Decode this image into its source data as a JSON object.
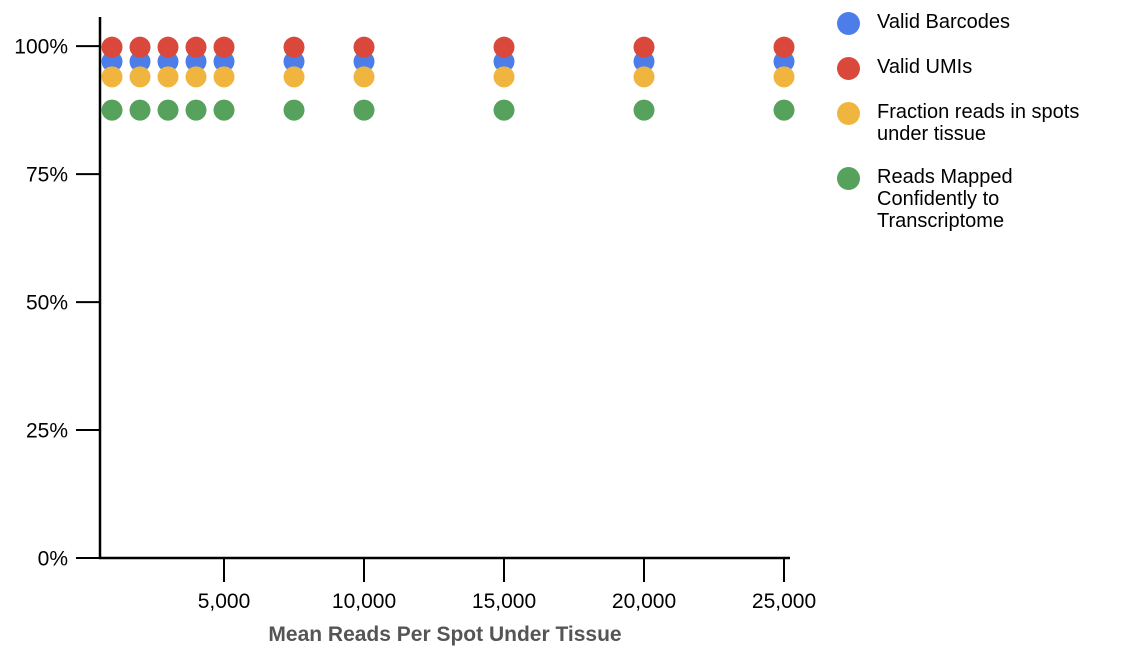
{
  "chart_data": {
    "type": "scatter",
    "title": "",
    "xlabel": "Mean Reads Per Spot Under Tissue",
    "ylabel": "",
    "x": [
      1000,
      2000,
      3000,
      4000,
      5000,
      7500,
      10000,
      15000,
      20000,
      25000
    ],
    "series": [
      {
        "name": "Valid Barcodes",
        "color": "#4C7DE8",
        "values": [
          97,
          97,
          97,
          97,
          97,
          97,
          97,
          97,
          97,
          97
        ]
      },
      {
        "name": "Valid UMIs",
        "color": "#D9483B",
        "values": [
          99.8,
          99.8,
          99.8,
          99.8,
          99.8,
          99.8,
          99.8,
          99.8,
          99.8,
          99.8
        ]
      },
      {
        "name": "Fraction reads in spots under tissue",
        "color": "#F0B53E",
        "values": [
          94,
          94,
          94,
          94,
          94,
          94,
          94,
          94,
          94,
          94
        ]
      },
      {
        "name": "Reads Mapped Confidently to Transcriptome",
        "color": "#56A15C",
        "values": [
          87.5,
          87.5,
          87.5,
          87.5,
          87.5,
          87.5,
          87.5,
          87.5,
          87.5,
          87.5
        ]
      }
    ],
    "x_ticks": [
      {
        "v": 5000,
        "label": "5,000"
      },
      {
        "v": 10000,
        "label": "10,000"
      },
      {
        "v": 15000,
        "label": "15,000"
      },
      {
        "v": 20000,
        "label": "20,000"
      },
      {
        "v": 25000,
        "label": "25,000"
      }
    ],
    "y_ticks": [
      {
        "v": 0,
        "label": "0%"
      },
      {
        "v": 25,
        "label": "25%"
      },
      {
        "v": 50,
        "label": "50%"
      },
      {
        "v": 75,
        "label": "75%"
      },
      {
        "v": 100,
        "label": "100%"
      }
    ],
    "xlim": [
      571,
      25214
    ],
    "ylim": [
      0,
      105.5
    ],
    "grid": false,
    "legend_position": "right",
    "marker_radius": 10.5
  },
  "legend": {
    "items": [
      {
        "label": "Valid Barcodes",
        "color": "#4C7DE8"
      },
      {
        "label": "Valid UMIs",
        "color": "#D9483B"
      },
      {
        "label": "Fraction reads in spots\nunder tissue",
        "color": "#F0B53E"
      },
      {
        "label": "Reads Mapped\nConfidently to\nTranscriptome",
        "color": "#56A15C"
      }
    ]
  },
  "colors": {
    "axis": "#000000",
    "tick_label": "#000000",
    "axis_title": "#555555",
    "background": "#ffffff"
  }
}
